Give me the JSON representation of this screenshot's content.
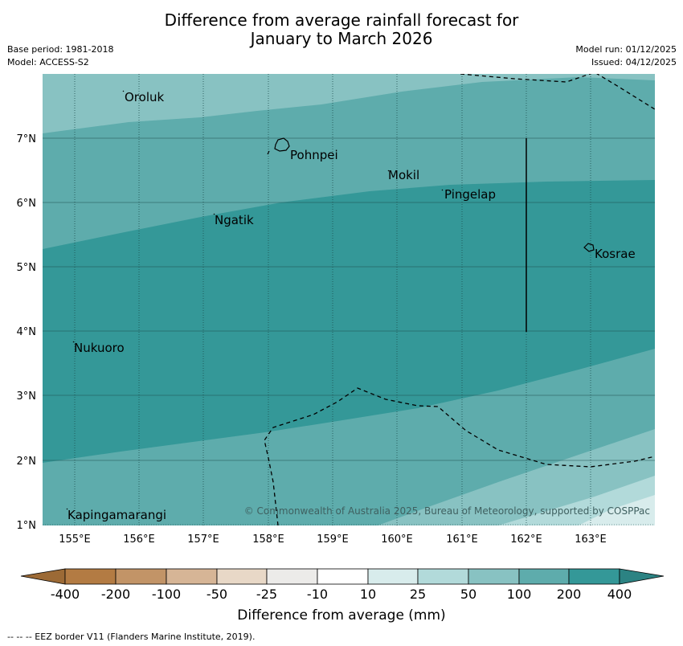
{
  "title": {
    "line1": "Difference from average rainfall forecast for",
    "line2": "January to March 2026"
  },
  "info": {
    "base_period": "Base period: 1981-2018",
    "model": "Model: ACCESS-S2",
    "model_run": "Model run: 01/12/2025",
    "issued": "Issued: 04/12/2025"
  },
  "map": {
    "lon_ticks": [
      "155°E",
      "156°E",
      "157°E",
      "158°E",
      "159°E",
      "160°E",
      "161°E",
      "162°E",
      "163°E"
    ],
    "lat_ticks": [
      "7°N",
      "6°N",
      "5°N",
      "4°N",
      "3°N",
      "2°N",
      "1°N"
    ],
    "places": [
      "Oroluk",
      "Pohnpei",
      "Mokil",
      "Pingelap",
      "Ngatik",
      "Kosrae",
      "Nukuoro",
      "Kapingamarangi"
    ],
    "copyright": "© Commonwealth of Australia 2025, Bureau of Meteorology, supported by COSPPac"
  },
  "colorbar": {
    "ticks": [
      "-400",
      "-200",
      "-100",
      "-50",
      "-25",
      "-10",
      "10",
      "25",
      "50",
      "100",
      "200",
      "400"
    ],
    "colors": [
      "#9c6a36",
      "#b37b43",
      "#c29467",
      "#d6b596",
      "#e8d8c7",
      "#ecebe9",
      "#ffffff",
      "#d8ecec",
      "#b2dada",
      "#88c2c2",
      "#5eacac",
      "#349898",
      "#2c8383"
    ],
    "label": "Difference from average (mm)"
  },
  "footnote": "--  --  -- EEZ border V11 (Flanders Marine Institute, 2019)."
}
